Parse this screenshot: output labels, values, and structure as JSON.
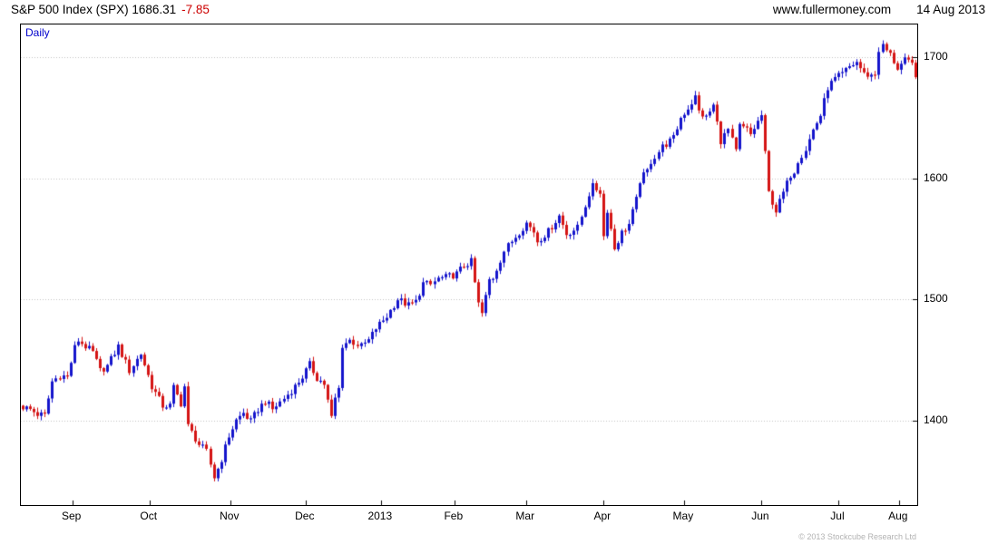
{
  "header": {
    "title_main": "S&P 500 Index (SPX) 1686.31",
    "change": "-7.85",
    "website": "www.fullermoney.com",
    "date": "14 Aug 2013"
  },
  "chart": {
    "timeframe_label": "Daily",
    "copyright": "© 2013 Stockcube Research Ltd"
  },
  "chart_data": {
    "type": "candlestick",
    "title": "S&P 500 Index (SPX) Daily",
    "last_price": 1686.31,
    "change": -7.85,
    "ylim": [
      1330,
      1727
    ],
    "y_ticks": [
      1400,
      1500,
      1600,
      1700
    ],
    "total_days": 244,
    "months": [
      {
        "label": "Sep",
        "start": 4
      },
      {
        "label": "Oct",
        "start": 23
      },
      {
        "label": "Nov",
        "start": 46
      },
      {
        "label": "Dec",
        "start": 67
      },
      {
        "label": "2013",
        "start": 87
      },
      {
        "label": "Feb",
        "start": 108
      },
      {
        "label": "Mar",
        "start": 127
      },
      {
        "label": "Apr",
        "start": 147
      },
      {
        "label": "May",
        "start": 169
      },
      {
        "label": "Jun",
        "start": 191
      },
      {
        "label": "Jul",
        "start": 211
      },
      {
        "label": "Aug",
        "start": 233
      }
    ],
    "anchors": [
      [
        0,
        1411
      ],
      [
        2,
        1409
      ],
      [
        4,
        1405
      ],
      [
        6,
        1404
      ],
      [
        8,
        1432
      ],
      [
        10,
        1437
      ],
      [
        12,
        1436
      ],
      [
        14,
        1460
      ],
      [
        15,
        1466
      ],
      [
        17,
        1461
      ],
      [
        19,
        1456
      ],
      [
        21,
        1441
      ],
      [
        23,
        1445
      ],
      [
        26,
        1461
      ],
      [
        29,
        1441
      ],
      [
        32,
        1455
      ],
      [
        35,
        1428
      ],
      [
        38,
        1412
      ],
      [
        40,
        1412
      ],
      [
        41,
        1427
      ],
      [
        43,
        1414
      ],
      [
        44,
        1428
      ],
      [
        45,
        1395
      ],
      [
        48,
        1380
      ],
      [
        50,
        1374
      ],
      [
        52,
        1353
      ],
      [
        53,
        1360
      ],
      [
        54,
        1368
      ],
      [
        56,
        1387
      ],
      [
        58,
        1400
      ],
      [
        60,
        1406
      ],
      [
        62,
        1399
      ],
      [
        64,
        1409
      ],
      [
        66,
        1416
      ],
      [
        68,
        1409
      ],
      [
        71,
        1418
      ],
      [
        74,
        1428
      ],
      [
        76,
        1436
      ],
      [
        78,
        1446
      ],
      [
        80,
        1435
      ],
      [
        82,
        1430
      ],
      [
        84,
        1402
      ],
      [
        85,
        1418
      ],
      [
        86,
        1426
      ],
      [
        87,
        1462
      ],
      [
        89,
        1466
      ],
      [
        92,
        1461
      ],
      [
        94,
        1466
      ],
      [
        96,
        1476
      ],
      [
        99,
        1486
      ],
      [
        102,
        1500
      ],
      [
        105,
        1495
      ],
      [
        107,
        1498
      ],
      [
        109,
        1513
      ],
      [
        111,
        1512
      ],
      [
        113,
        1517
      ],
      [
        115,
        1518
      ],
      [
        118,
        1521
      ],
      [
        120,
        1528
      ],
      [
        122,
        1531
      ],
      [
        124,
        1496
      ],
      [
        125,
        1488
      ],
      [
        127,
        1516
      ],
      [
        128,
        1518
      ],
      [
        131,
        1540
      ],
      [
        134,
        1552
      ],
      [
        137,
        1563
      ],
      [
        139,
        1556
      ],
      [
        140,
        1548
      ],
      [
        143,
        1556
      ],
      [
        146,
        1569
      ],
      [
        148,
        1554
      ],
      [
        151,
        1559
      ],
      [
        154,
        1587
      ],
      [
        155,
        1593
      ],
      [
        157,
        1589
      ],
      [
        158,
        1552
      ],
      [
        159,
        1574
      ],
      [
        161,
        1542
      ],
      [
        163,
        1555
      ],
      [
        165,
        1562
      ],
      [
        167,
        1582
      ],
      [
        168,
        1598
      ],
      [
        170,
        1606
      ],
      [
        171,
        1614
      ],
      [
        174,
        1626
      ],
      [
        177,
        1633
      ],
      [
        179,
        1650
      ],
      [
        181,
        1658
      ],
      [
        183,
        1667
      ],
      [
        184,
        1655
      ],
      [
        186,
        1650
      ],
      [
        188,
        1660
      ],
      [
        190,
        1631
      ],
      [
        192,
        1640
      ],
      [
        194,
        1622
      ],
      [
        195,
        1643
      ],
      [
        197,
        1640
      ],
      [
        198,
        1636
      ],
      [
        201,
        1652
      ],
      [
        203,
        1588
      ],
      [
        205,
        1573
      ],
      [
        207,
        1588
      ],
      [
        209,
        1603
      ],
      [
        210,
        1606
      ],
      [
        211,
        1615
      ],
      [
        213,
        1624
      ],
      [
        214,
        1632
      ],
      [
        215,
        1640
      ],
      [
        217,
        1652
      ],
      [
        219,
        1675
      ],
      [
        221,
        1682
      ],
      [
        223,
        1686
      ],
      [
        225,
        1692
      ],
      [
        227,
        1696
      ],
      [
        229,
        1686
      ],
      [
        231,
        1685
      ],
      [
        232,
        1686
      ],
      [
        233,
        1706
      ],
      [
        234,
        1709
      ],
      [
        236,
        1702
      ],
      [
        238,
        1691
      ],
      [
        240,
        1697
      ],
      [
        242,
        1694
      ],
      [
        243,
        1686
      ]
    ],
    "up_color": "#1414cc",
    "down_color": "#d41414",
    "grid_color": "#c0c0c0",
    "close_noise": 3,
    "wick_noise": 3.5
  }
}
